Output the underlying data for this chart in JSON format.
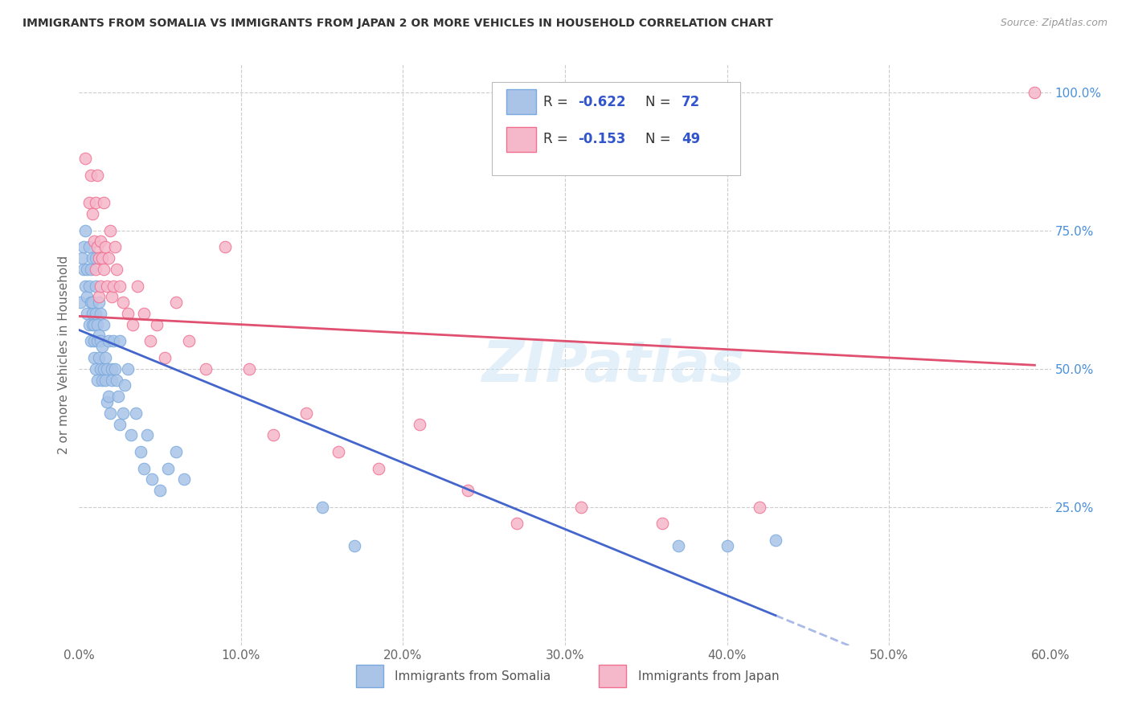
{
  "title": "IMMIGRANTS FROM SOMALIA VS IMMIGRANTS FROM JAPAN 2 OR MORE VEHICLES IN HOUSEHOLD CORRELATION CHART",
  "source": "Source: ZipAtlas.com",
  "ylabel": "2 or more Vehicles in Household",
  "xlim": [
    0.0,
    0.6
  ],
  "ylim": [
    0.0,
    1.05
  ],
  "xtick_labels": [
    "0.0%",
    "",
    "",
    "",
    "",
    "",
    "",
    "",
    "",
    "",
    "10.0%",
    "",
    "",
    "",
    "",
    "",
    "",
    "",
    "",
    "",
    "20.0%",
    "",
    "",
    "",
    "",
    "",
    "",
    "",
    "",
    "",
    "30.0%",
    "",
    "",
    "",
    "",
    "",
    "",
    "",
    "",
    "",
    "40.0%",
    "",
    "",
    "",
    "",
    "",
    "",
    "",
    "",
    "",
    "50.0%",
    "",
    "",
    "",
    "",
    "",
    "",
    "",
    "",
    "",
    "60.0%"
  ],
  "xtick_values": [
    0.0,
    0.01,
    0.02,
    0.03,
    0.04,
    0.05,
    0.06,
    0.07,
    0.08,
    0.09,
    0.1,
    0.11,
    0.12,
    0.13,
    0.14,
    0.15,
    0.16,
    0.17,
    0.18,
    0.19,
    0.2,
    0.21,
    0.22,
    0.23,
    0.24,
    0.25,
    0.26,
    0.27,
    0.28,
    0.29,
    0.3,
    0.31,
    0.32,
    0.33,
    0.34,
    0.35,
    0.36,
    0.37,
    0.38,
    0.39,
    0.4,
    0.41,
    0.42,
    0.43,
    0.44,
    0.45,
    0.46,
    0.47,
    0.48,
    0.49,
    0.5,
    0.51,
    0.52,
    0.53,
    0.54,
    0.55,
    0.56,
    0.57,
    0.58,
    0.59,
    0.6
  ],
  "ytick_labels": [
    "25.0%",
    "50.0%",
    "75.0%",
    "100.0%"
  ],
  "ytick_values": [
    0.25,
    0.5,
    0.75,
    1.0
  ],
  "somalia_color": "#aac4e8",
  "japan_color": "#f5b8cb",
  "somalia_edge": "#7aaadd",
  "japan_edge": "#f07090",
  "regression_somalia_color": "#4466cc",
  "regression_japan_color": "#e05070",
  "watermark": "ZIPatlas",
  "somalia_x": [
    0.001,
    0.002,
    0.003,
    0.003,
    0.004,
    0.004,
    0.005,
    0.005,
    0.005,
    0.006,
    0.006,
    0.006,
    0.007,
    0.007,
    0.007,
    0.008,
    0.008,
    0.008,
    0.008,
    0.009,
    0.009,
    0.009,
    0.01,
    0.01,
    0.01,
    0.01,
    0.011,
    0.011,
    0.011,
    0.012,
    0.012,
    0.012,
    0.013,
    0.013,
    0.013,
    0.014,
    0.014,
    0.015,
    0.015,
    0.016,
    0.016,
    0.017,
    0.017,
    0.018,
    0.018,
    0.019,
    0.02,
    0.02,
    0.021,
    0.022,
    0.023,
    0.024,
    0.025,
    0.025,
    0.027,
    0.028,
    0.03,
    0.032,
    0.035,
    0.038,
    0.04,
    0.042,
    0.045,
    0.05,
    0.055,
    0.06,
    0.065,
    0.15,
    0.17,
    0.37,
    0.4,
    0.43
  ],
  "somalia_y": [
    0.62,
    0.7,
    0.68,
    0.72,
    0.75,
    0.65,
    0.68,
    0.63,
    0.6,
    0.72,
    0.65,
    0.58,
    0.62,
    0.55,
    0.68,
    0.6,
    0.58,
    0.62,
    0.7,
    0.55,
    0.58,
    0.52,
    0.65,
    0.6,
    0.7,
    0.5,
    0.58,
    0.48,
    0.55,
    0.52,
    0.56,
    0.62,
    0.5,
    0.6,
    0.55,
    0.48,
    0.54,
    0.5,
    0.58,
    0.52,
    0.48,
    0.44,
    0.5,
    0.55,
    0.45,
    0.42,
    0.48,
    0.5,
    0.55,
    0.5,
    0.48,
    0.45,
    0.4,
    0.55,
    0.42,
    0.47,
    0.5,
    0.38,
    0.42,
    0.35,
    0.32,
    0.38,
    0.3,
    0.28,
    0.32,
    0.35,
    0.3,
    0.25,
    0.18,
    0.18,
    0.18,
    0.19
  ],
  "japan_x": [
    0.004,
    0.006,
    0.007,
    0.008,
    0.009,
    0.01,
    0.01,
    0.011,
    0.011,
    0.012,
    0.012,
    0.013,
    0.013,
    0.014,
    0.015,
    0.015,
    0.016,
    0.017,
    0.018,
    0.019,
    0.02,
    0.021,
    0.022,
    0.023,
    0.025,
    0.027,
    0.03,
    0.033,
    0.036,
    0.04,
    0.044,
    0.048,
    0.053,
    0.06,
    0.068,
    0.078,
    0.09,
    0.105,
    0.12,
    0.14,
    0.16,
    0.185,
    0.21,
    0.24,
    0.27,
    0.31,
    0.36,
    0.42,
    0.59
  ],
  "japan_y": [
    0.88,
    0.8,
    0.85,
    0.78,
    0.73,
    0.8,
    0.68,
    0.72,
    0.85,
    0.7,
    0.63,
    0.65,
    0.73,
    0.7,
    0.68,
    0.8,
    0.72,
    0.65,
    0.7,
    0.75,
    0.63,
    0.65,
    0.72,
    0.68,
    0.65,
    0.62,
    0.6,
    0.58,
    0.65,
    0.6,
    0.55,
    0.58,
    0.52,
    0.62,
    0.55,
    0.5,
    0.72,
    0.5,
    0.38,
    0.42,
    0.35,
    0.32,
    0.4,
    0.28,
    0.22,
    0.25,
    0.22,
    0.25,
    1.0
  ],
  "regression_somalia_slope": -1.2,
  "regression_somalia_intercept": 0.57,
  "regression_somalia_x_solid_end": 0.43,
  "regression_japan_slope": -0.15,
  "regression_japan_intercept": 0.595,
  "regression_japan_x_end": 0.59
}
